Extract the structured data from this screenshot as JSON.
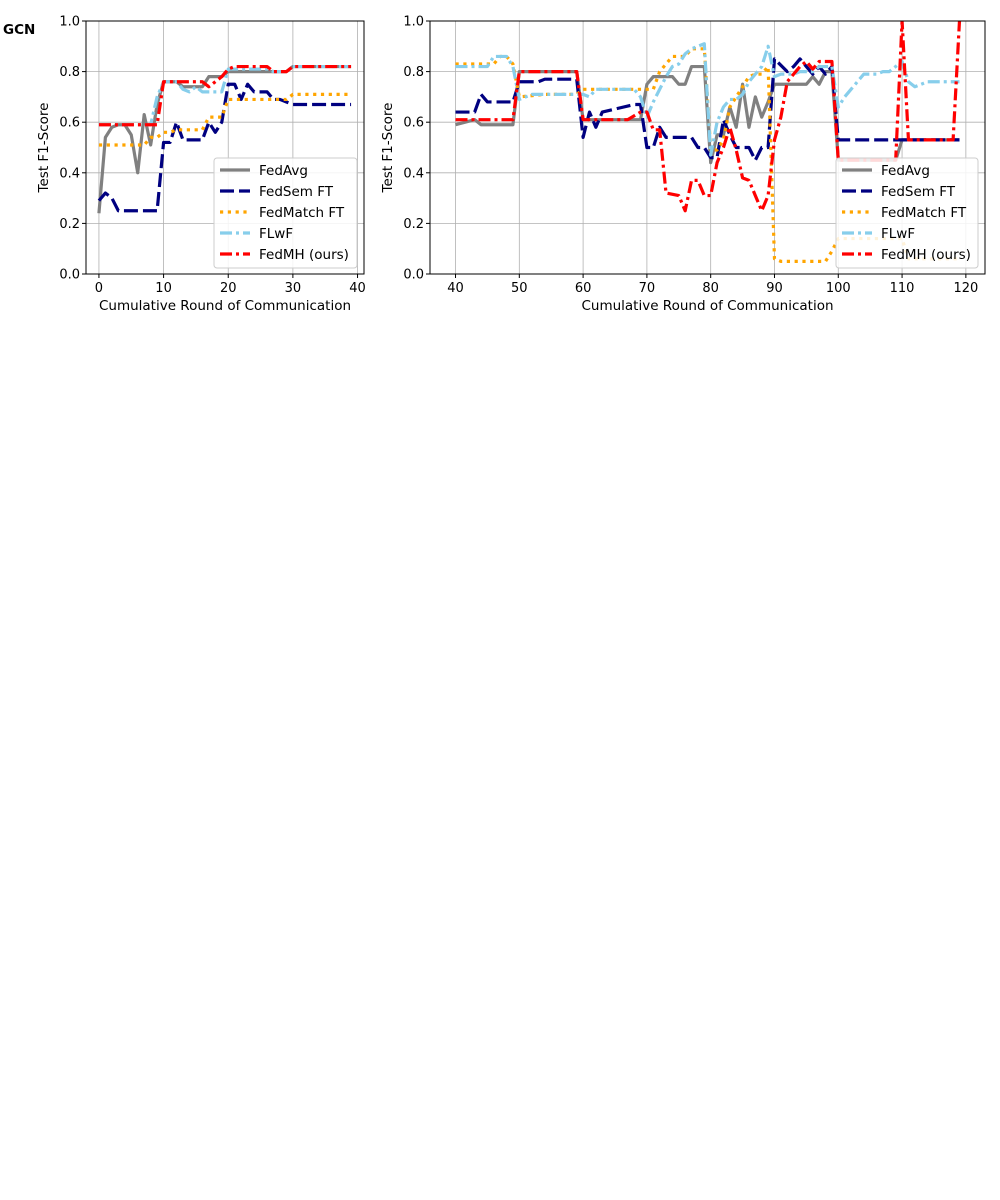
{
  "figure": {
    "row_label": "GCN"
  },
  "chart_data": [
    {
      "type": "line",
      "xlabel": "Cumulative Round of Communication",
      "ylabel": "Test F1-Score",
      "xlim": [
        -2,
        41
      ],
      "ylim": [
        0,
        1
      ],
      "xticks": [
        "0",
        "10",
        "20",
        "30",
        "40"
      ],
      "yticks": [
        "0.0",
        "0.2",
        "0.4",
        "0.6",
        "0.8",
        "1.0"
      ],
      "grid": true,
      "legend_position": "lower-right",
      "series": [
        {
          "name": "FedAvg",
          "color": "#808080",
          "dash": "solid",
          "x": [
            0,
            1,
            2,
            3,
            4,
            5,
            6,
            7,
            8,
            9,
            10,
            11,
            12,
            13,
            14,
            15,
            16,
            17,
            18,
            19,
            20,
            21,
            22,
            23,
            24,
            25,
            26,
            27,
            28,
            29,
            30,
            31,
            32,
            33,
            34,
            35,
            36,
            37,
            38,
            39
          ],
          "y": [
            0.24,
            0.54,
            0.58,
            0.59,
            0.59,
            0.55,
            0.4,
            0.63,
            0.51,
            0.67,
            0.76,
            0.76,
            0.76,
            0.74,
            0.74,
            0.74,
            0.74,
            0.78,
            0.78,
            0.78,
            0.8,
            0.8,
            0.8,
            0.8,
            0.8,
            0.8,
            0.8,
            0.8,
            0.8,
            0.8,
            0.82,
            0.82,
            0.82,
            0.82,
            0.82,
            0.82,
            0.82,
            0.82,
            0.82,
            0.82
          ]
        },
        {
          "name": "FedSem FT",
          "color": "#000080",
          "dash": "dashed",
          "x": [
            0,
            1,
            2,
            3,
            4,
            5,
            6,
            7,
            8,
            9,
            10,
            11,
            12,
            13,
            14,
            15,
            16,
            17,
            18,
            19,
            20,
            21,
            22,
            23,
            24,
            25,
            26,
            27,
            28,
            29,
            30,
            31,
            32,
            33,
            34,
            35,
            36,
            37,
            38,
            39
          ],
          "y": [
            0.29,
            0.32,
            0.3,
            0.25,
            0.25,
            0.25,
            0.25,
            0.25,
            0.25,
            0.25,
            0.52,
            0.52,
            0.6,
            0.53,
            0.53,
            0.53,
            0.53,
            0.6,
            0.56,
            0.6,
            0.75,
            0.75,
            0.69,
            0.75,
            0.72,
            0.72,
            0.72,
            0.69,
            0.69,
            0.68,
            0.67,
            0.67,
            0.67,
            0.67,
            0.67,
            0.67,
            0.67,
            0.67,
            0.67,
            0.67
          ]
        },
        {
          "name": "FedMatch FT",
          "color": "#ffa500",
          "dash": "dotted",
          "x": [
            0,
            1,
            2,
            3,
            4,
            5,
            6,
            7,
            8,
            9,
            10,
            11,
            12,
            13,
            14,
            15,
            16,
            17,
            18,
            19,
            20,
            21,
            22,
            23,
            24,
            25,
            26,
            27,
            28,
            29,
            30,
            31,
            32,
            33,
            34,
            35,
            36,
            37,
            38,
            39
          ],
          "y": [
            0.51,
            0.51,
            0.51,
            0.51,
            0.51,
            0.51,
            0.51,
            0.51,
            0.54,
            0.54,
            0.56,
            0.56,
            0.57,
            0.57,
            0.57,
            0.57,
            0.57,
            0.62,
            0.62,
            0.62,
            0.69,
            0.69,
            0.69,
            0.69,
            0.69,
            0.69,
            0.69,
            0.69,
            0.69,
            0.69,
            0.71,
            0.71,
            0.71,
            0.71,
            0.71,
            0.71,
            0.71,
            0.71,
            0.71,
            0.71
          ]
        },
        {
          "name": "FLwF",
          "color": "#87ceeb",
          "dash": "dashdot",
          "x": [
            0,
            1,
            2,
            3,
            4,
            5,
            6,
            7,
            8,
            9,
            10,
            11,
            12,
            13,
            14,
            15,
            16,
            17,
            18,
            19,
            20,
            21,
            22,
            23,
            24,
            25,
            26,
            27,
            28,
            29,
            30,
            31,
            32,
            33,
            34,
            35,
            36,
            37,
            38,
            39
          ],
          "y": [
            0.59,
            0.59,
            0.59,
            0.59,
            0.59,
            0.59,
            0.59,
            0.59,
            0.59,
            0.7,
            0.76,
            0.76,
            0.76,
            0.73,
            0.72,
            0.74,
            0.72,
            0.72,
            0.72,
            0.72,
            0.81,
            0.81,
            0.81,
            0.81,
            0.81,
            0.81,
            0.81,
            0.8,
            0.8,
            0.8,
            0.82,
            0.82,
            0.82,
            0.82,
            0.82,
            0.82,
            0.82,
            0.82,
            0.82,
            0.82
          ]
        },
        {
          "name": "FedMH (ours)",
          "color": "#ff0000",
          "dash": "dashdot",
          "x": [
            0,
            1,
            2,
            3,
            4,
            5,
            6,
            7,
            8,
            9,
            10,
            11,
            12,
            13,
            14,
            15,
            16,
            17,
            18,
            19,
            20,
            21,
            22,
            23,
            24,
            25,
            26,
            27,
            28,
            29,
            30,
            31,
            32,
            33,
            34,
            35,
            36,
            37,
            38,
            39
          ],
          "y": [
            0.59,
            0.59,
            0.59,
            0.59,
            0.59,
            0.59,
            0.59,
            0.59,
            0.59,
            0.59,
            0.76,
            0.76,
            0.76,
            0.76,
            0.76,
            0.76,
            0.76,
            0.74,
            0.76,
            0.78,
            0.81,
            0.82,
            0.82,
            0.82,
            0.82,
            0.82,
            0.82,
            0.8,
            0.8,
            0.8,
            0.82,
            0.82,
            0.82,
            0.82,
            0.82,
            0.82,
            0.82,
            0.82,
            0.82,
            0.82
          ]
        }
      ]
    },
    {
      "type": "line",
      "xlabel": "Cumulative Round of Communication",
      "ylabel": "Test F1-Score",
      "xlim": [
        36,
        123
      ],
      "ylim": [
        0,
        1
      ],
      "xticks": [
        "40",
        "50",
        "60",
        "70",
        "80",
        "90",
        "100",
        "110",
        "120"
      ],
      "yticks": [
        "0.0",
        "0.2",
        "0.4",
        "0.6",
        "0.8",
        "1.0"
      ],
      "grid": true,
      "legend_position": "right",
      "series": [
        {
          "name": "FedAvg",
          "color": "#808080",
          "dash": "solid",
          "x": [
            40,
            43,
            44,
            49,
            50,
            59,
            60,
            69,
            70,
            71,
            72,
            74,
            75,
            76,
            77,
            78,
            79,
            80,
            81,
            82,
            83,
            84,
            85,
            86,
            87,
            88,
            89,
            90,
            91,
            92,
            93,
            94,
            95,
            96,
            97,
            98,
            99,
            100,
            105,
            108,
            109,
            110,
            111,
            119
          ],
          "y": [
            0.59,
            0.61,
            0.59,
            0.59,
            0.8,
            0.8,
            0.61,
            0.61,
            0.75,
            0.78,
            0.78,
            0.78,
            0.75,
            0.75,
            0.82,
            0.82,
            0.82,
            0.44,
            0.55,
            0.55,
            0.66,
            0.58,
            0.75,
            0.58,
            0.7,
            0.62,
            0.68,
            0.75,
            0.75,
            0.75,
            0.75,
            0.75,
            0.75,
            0.78,
            0.75,
            0.8,
            0.8,
            0.45,
            0.45,
            0.45,
            0.45,
            0.53,
            0.53,
            0.53
          ]
        },
        {
          "name": "FedSem FT",
          "color": "#000080",
          "dash": "dashed",
          "x": [
            40,
            43,
            44,
            45,
            49,
            50,
            53,
            54,
            59,
            60,
            61,
            62,
            63,
            68,
            69,
            70,
            71,
            72,
            73,
            77,
            78,
            79,
            80,
            81,
            82,
            83,
            84,
            86,
            87,
            88,
            89,
            90,
            92,
            93,
            94,
            95,
            96,
            97,
            98,
            99,
            100,
            119
          ],
          "y": [
            0.64,
            0.64,
            0.71,
            0.68,
            0.68,
            0.76,
            0.76,
            0.77,
            0.77,
            0.54,
            0.64,
            0.58,
            0.64,
            0.67,
            0.67,
            0.5,
            0.5,
            0.58,
            0.54,
            0.54,
            0.5,
            0.5,
            0.46,
            0.46,
            0.61,
            0.55,
            0.5,
            0.5,
            0.45,
            0.5,
            0.5,
            0.85,
            0.8,
            0.82,
            0.85,
            0.82,
            0.79,
            0.82,
            0.79,
            0.82,
            0.53,
            0.53
          ]
        },
        {
          "name": "FedMatch FT",
          "color": "#ffa500",
          "dash": "dotted",
          "x": [
            40,
            44,
            46,
            47,
            48,
            49,
            50,
            54,
            55,
            58,
            59,
            60,
            69,
            70,
            71,
            72,
            73,
            74,
            75,
            76,
            77,
            78,
            79,
            80,
            81,
            82,
            83,
            84,
            85,
            86,
            87,
            88,
            89,
            90,
            91,
            92,
            98,
            99,
            100,
            110,
            111,
            114,
            119
          ],
          "y": [
            0.83,
            0.83,
            0.83,
            0.86,
            0.86,
            0.83,
            0.7,
            0.71,
            0.71,
            0.71,
            0.71,
            0.73,
            0.73,
            0.73,
            0.73,
            0.8,
            0.83,
            0.86,
            0.86,
            0.86,
            0.89,
            0.89,
            0.89,
            0.49,
            0.49,
            0.53,
            0.66,
            0.7,
            0.74,
            0.78,
            0.79,
            0.79,
            0.82,
            0.06,
            0.05,
            0.05,
            0.05,
            0.09,
            0.14,
            0.14,
            0.06,
            0.06,
            0.06
          ]
        },
        {
          "name": "FLwF",
          "color": "#87ceeb",
          "dash": "dashdot",
          "x": [
            40,
            45,
            46,
            48,
            49,
            50,
            52,
            55,
            59,
            60,
            61,
            62,
            68,
            69,
            70,
            71,
            72,
            73,
            74,
            75,
            76,
            77,
            78,
            79,
            80,
            81,
            82,
            83,
            84,
            85,
            86,
            87,
            88,
            89,
            90,
            91,
            92,
            93,
            94,
            95,
            96,
            97,
            98,
            99,
            100,
            101,
            102,
            103,
            104,
            105,
            106,
            107,
            108,
            109,
            110,
            111,
            112,
            113,
            114,
            115,
            119
          ],
          "y": [
            0.82,
            0.82,
            0.86,
            0.86,
            0.82,
            0.69,
            0.71,
            0.71,
            0.71,
            0.71,
            0.7,
            0.73,
            0.73,
            0.7,
            0.62,
            0.68,
            0.73,
            0.78,
            0.82,
            0.83,
            0.87,
            0.89,
            0.9,
            0.91,
            0.47,
            0.6,
            0.66,
            0.69,
            0.69,
            0.71,
            0.76,
            0.79,
            0.82,
            0.9,
            0.78,
            0.79,
            0.79,
            0.79,
            0.8,
            0.8,
            0.8,
            0.82,
            0.82,
            0.82,
            0.66,
            0.7,
            0.73,
            0.76,
            0.79,
            0.79,
            0.79,
            0.8,
            0.8,
            0.82,
            0.84,
            0.76,
            0.74,
            0.75,
            0.76,
            0.76,
            0.76
          ]
        },
        {
          "name": "FedMH (ours)",
          "color": "#ff0000",
          "dash": "dashdot",
          "x": [
            40,
            49,
            50,
            59,
            60,
            67,
            69,
            70,
            71,
            72,
            73,
            75,
            76,
            77,
            78,
            79,
            80,
            81,
            82,
            83,
            84,
            85,
            86,
            87,
            88,
            89,
            90,
            91,
            92,
            93,
            94,
            95,
            96,
            97,
            98,
            99,
            100,
            108,
            109,
            110,
            111,
            118,
            119
          ],
          "y": [
            0.61,
            0.61,
            0.8,
            0.8,
            0.61,
            0.61,
            0.64,
            0.64,
            0.57,
            0.57,
            0.32,
            0.31,
            0.25,
            0.37,
            0.37,
            0.31,
            0.31,
            0.44,
            0.5,
            0.58,
            0.49,
            0.38,
            0.37,
            0.31,
            0.25,
            0.31,
            0.53,
            0.62,
            0.76,
            0.79,
            0.82,
            0.84,
            0.81,
            0.84,
            0.84,
            0.84,
            0.45,
            0.45,
            0.45,
            1.0,
            0.53,
            0.53,
            1.0
          ]
        }
      ]
    }
  ]
}
